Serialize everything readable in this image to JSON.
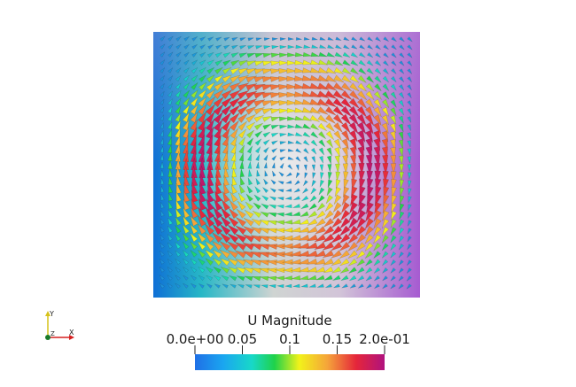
{
  "colorbar": {
    "title": "U Magnitude",
    "ticks": [
      {
        "value": 0.0,
        "label": "0.0e+00"
      },
      {
        "value": 0.05,
        "label": "0.05"
      },
      {
        "value": 0.1,
        "label": "0.1"
      },
      {
        "value": 0.15,
        "label": "0.15"
      },
      {
        "value": 0.2,
        "label": "2.0e-01"
      }
    ],
    "range": [
      0.0,
      0.2
    ],
    "colors": [
      "#3b4cc0",
      "#1f8ff0",
      "#17d8d0",
      "#1fd24a",
      "#f2f21a",
      "#f5a33a",
      "#e5263a",
      "#b0127e"
    ]
  },
  "orientation_axes": {
    "x_label": "X",
    "y_label": "Y",
    "z_label": "Z"
  },
  "field": {
    "background_colors": [
      "#0f6fd6",
      "#27c3b0",
      "#cfd2d0",
      "#c9b9d5",
      "#a65bd1"
    ]
  }
}
